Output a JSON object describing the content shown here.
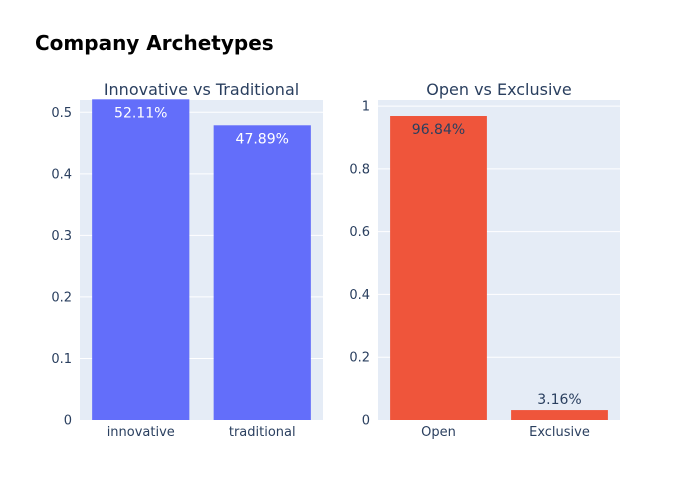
{
  "chart_data": [
    {
      "type": "bar",
      "title": "Innovative vs Traditional",
      "categories": [
        "innovative",
        "traditional"
      ],
      "values": [
        0.5211,
        0.4789
      ],
      "labels": [
        "52.11%",
        "47.89%"
      ],
      "label_position": "inside",
      "ylim": [
        0,
        0.52
      ],
      "yticks": [
        0,
        0.1,
        0.2,
        0.3,
        0.4,
        0.5
      ],
      "ytick_labels": [
        "0",
        "0.1",
        "0.2",
        "0.3",
        "0.4",
        "0.5"
      ],
      "color": "#636efa",
      "label_color": "#ffffff",
      "grid": true
    },
    {
      "type": "bar",
      "title": "Open vs Exclusive",
      "categories": [
        "Open",
        "Exclusive"
      ],
      "values": [
        0.9684,
        0.0316
      ],
      "labels": [
        "96.84%",
        "3.16%"
      ],
      "label_position": "auto",
      "ylim": [
        0,
        1.0194
      ],
      "yticks": [
        0,
        0.2,
        0.4,
        0.6,
        0.8,
        1
      ],
      "ytick_labels": [
        "0",
        "0.2",
        "0.4",
        "0.6",
        "0.8",
        "1"
      ],
      "color": "#ef553b",
      "label_color": "#2a3f5f",
      "grid": true
    }
  ],
  "figure": {
    "title": "Company Archetypes",
    "background": "#ffffff",
    "plot_background": "#e5ecf6",
    "gridline_color": "#ffffff",
    "text_color": "#2a3f5f"
  }
}
